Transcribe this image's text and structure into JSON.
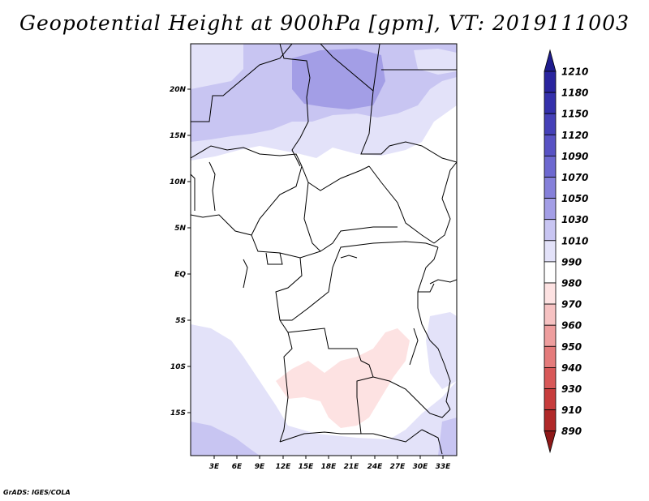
{
  "title": "Geopotential Height at 900hPa [gpm], VT: 2019111003",
  "credit": "GrADS: IGES/COLA",
  "map": {
    "lat_ticks": [
      "20N",
      "15N",
      "10N",
      "5N",
      "EQ",
      "5S",
      "10S",
      "15S"
    ],
    "lon_ticks": [
      "3E",
      "6E",
      "9E",
      "12E",
      "15E",
      "18E",
      "21E",
      "24E",
      "27E",
      "30E",
      "33E"
    ]
  },
  "colorbar": {
    "levels": [
      "1210",
      "1180",
      "1150",
      "1120",
      "1090",
      "1070",
      "1050",
      "1030",
      "1010",
      "990",
      "980",
      "970",
      "960",
      "950",
      "940",
      "930",
      "910",
      "890"
    ],
    "colors": [
      "#1f1c8e",
      "#29249e",
      "#3430ab",
      "#4540b8",
      "#5852c4",
      "#6d68d0",
      "#8580da",
      "#a39ee6",
      "#c8c5f2",
      "#e3e2f9",
      "#ffffff",
      "#fde2e2",
      "#f6c2c2",
      "#ee9e9e",
      "#e47b7b",
      "#d85858",
      "#c73c3c",
      "#b02828",
      "#8e1818"
    ]
  }
}
